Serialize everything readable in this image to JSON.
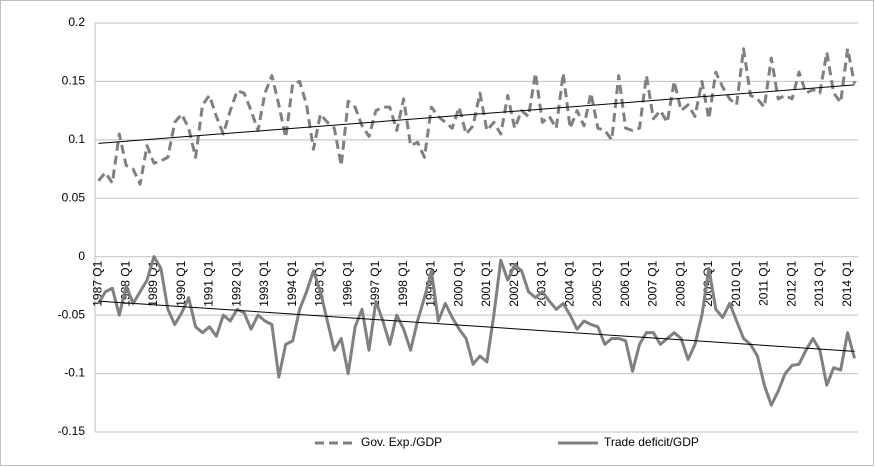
{
  "chart_data": {
    "type": "line",
    "categories": [
      "1987 Q1",
      null,
      null,
      null,
      "1988 Q1",
      null,
      null,
      null,
      "1989 Q1",
      null,
      null,
      null,
      "1990 Q1",
      null,
      null,
      null,
      "1991 Q1",
      null,
      null,
      null,
      "1992 Q1",
      null,
      null,
      null,
      "1993 Q1",
      null,
      null,
      null,
      "1994 Q1",
      null,
      null,
      null,
      "1995 Q1",
      null,
      null,
      null,
      "1996 Q1",
      null,
      null,
      null,
      "1997 Q1",
      null,
      null,
      null,
      "1998 Q1",
      null,
      null,
      null,
      "1999 Q1",
      null,
      null,
      null,
      "2000 Q1",
      null,
      null,
      null,
      "2001 Q1",
      null,
      null,
      null,
      "2002 Q1",
      null,
      null,
      null,
      "2003 Q1",
      null,
      null,
      null,
      "2004 Q1",
      null,
      null,
      null,
      "2005 Q1",
      null,
      null,
      null,
      "2006 Q1",
      null,
      null,
      null,
      "2007 Q1",
      null,
      null,
      null,
      "2008 Q1",
      null,
      null,
      null,
      "2009 Q1",
      null,
      null,
      null,
      "2010 Q1",
      null,
      null,
      null,
      "2011 Q1",
      null,
      null,
      null,
      "2012 Q1",
      null,
      null,
      null,
      "2013 Q1",
      null,
      null,
      null,
      "2014 Q1",
      null
    ],
    "series": [
      {
        "name": "Gov. Exp./GDP",
        "color": "#808080",
        "line_style": "dashed",
        "trend_color": "#000000",
        "trend": [
          0.097,
          0.147
        ],
        "values": [
          0.065,
          0.072,
          0.063,
          0.105,
          0.078,
          0.075,
          0.062,
          0.095,
          0.08,
          0.082,
          0.085,
          0.115,
          0.122,
          0.11,
          0.085,
          0.13,
          0.138,
          0.12,
          0.105,
          0.125,
          0.142,
          0.14,
          0.125,
          0.108,
          0.14,
          0.155,
          0.13,
          0.102,
          0.148,
          0.15,
          0.13,
          0.092,
          0.122,
          0.115,
          0.11,
          0.078,
          0.133,
          0.128,
          0.112,
          0.103,
          0.125,
          0.128,
          0.128,
          0.108,
          0.135,
          0.095,
          0.098,
          0.085,
          0.128,
          0.12,
          0.115,
          0.11,
          0.128,
          0.105,
          0.112,
          0.14,
          0.108,
          0.115,
          0.105,
          0.138,
          0.11,
          0.125,
          0.12,
          0.157,
          0.115,
          0.12,
          0.11,
          0.157,
          0.11,
          0.125,
          0.112,
          0.14,
          0.11,
          0.108,
          0.1,
          0.155,
          0.11,
          0.108,
          0.11,
          0.155,
          0.118,
          0.125,
          0.115,
          0.15,
          0.125,
          0.13,
          0.12,
          0.15,
          0.118,
          0.158,
          0.145,
          0.135,
          0.13,
          0.178,
          0.138,
          0.135,
          0.128,
          0.17,
          0.135,
          0.138,
          0.135,
          0.158,
          0.14,
          0.143,
          0.14,
          0.175,
          0.14,
          0.132,
          0.178,
          0.148
        ]
      },
      {
        "name": "Trade deficit/GDP",
        "color": "#808080",
        "line_style": "solid",
        "trend_color": "#000000",
        "trend": [
          -0.038,
          -0.081
        ],
        "values": [
          -0.04,
          -0.03,
          -0.027,
          -0.05,
          -0.025,
          -0.04,
          -0.03,
          -0.02,
          0.0,
          -0.01,
          -0.045,
          -0.058,
          -0.048,
          -0.035,
          -0.06,
          -0.065,
          -0.06,
          -0.068,
          -0.05,
          -0.055,
          -0.045,
          -0.048,
          -0.062,
          -0.05,
          -0.055,
          -0.058,
          -0.103,
          -0.075,
          -0.072,
          -0.045,
          -0.03,
          -0.012,
          -0.03,
          -0.055,
          -0.08,
          -0.07,
          -0.1,
          -0.06,
          -0.045,
          -0.08,
          -0.038,
          -0.055,
          -0.075,
          -0.05,
          -0.062,
          -0.08,
          -0.055,
          -0.035,
          -0.012,
          -0.055,
          -0.04,
          -0.052,
          -0.062,
          -0.07,
          -0.092,
          -0.085,
          -0.09,
          -0.05,
          -0.003,
          -0.02,
          -0.007,
          -0.012,
          -0.03,
          -0.035,
          -0.03,
          -0.038,
          -0.045,
          -0.04,
          -0.05,
          -0.062,
          -0.055,
          -0.058,
          -0.06,
          -0.075,
          -0.07,
          -0.07,
          -0.072,
          -0.098,
          -0.075,
          -0.065,
          -0.065,
          -0.075,
          -0.07,
          -0.065,
          -0.07,
          -0.088,
          -0.075,
          -0.05,
          -0.01,
          -0.045,
          -0.052,
          -0.04,
          -0.055,
          -0.07,
          -0.075,
          -0.085,
          -0.11,
          -0.127,
          -0.115,
          -0.1,
          -0.093,
          -0.092,
          -0.08,
          -0.07,
          -0.08,
          -0.11,
          -0.095,
          -0.097,
          -0.065,
          -0.087
        ]
      }
    ],
    "ylim": [
      -0.15,
      0.2
    ],
    "yticks": [
      -0.15,
      -0.1,
      -0.05,
      0,
      0.05,
      0.1,
      0.15,
      0.2
    ],
    "grid": true,
    "legend": "bottom"
  }
}
